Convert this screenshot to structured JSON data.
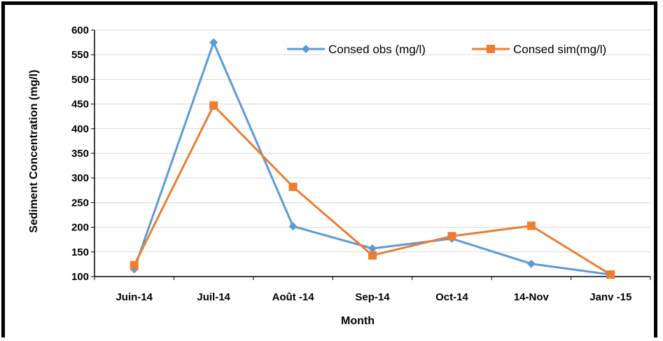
{
  "chart_data": {
    "type": "line",
    "title": "",
    "xlabel": "Month",
    "ylabel": "Sediment Concentration (mg/l)",
    "ylim": [
      100,
      600
    ],
    "yticks": [
      100,
      150,
      200,
      250,
      300,
      350,
      400,
      450,
      500,
      550,
      600
    ],
    "categories": [
      "Juin-14",
      "Juil-14",
      "Août -14",
      "Sep-14",
      "Oct-14",
      "14-Nov",
      "Janv -15"
    ],
    "grid": "horizontal",
    "legend": "top-right",
    "series": [
      {
        "name": "Consed obs (mg/l)",
        "color": "#5b9bd5",
        "marker": "diamond",
        "values": [
          115,
          575,
          202,
          157,
          177,
          126,
          104
        ]
      },
      {
        "name": "Consed sim(mg/l)",
        "color": "#ed7d31",
        "marker": "square",
        "values": [
          123,
          447,
          282,
          143,
          182,
          203,
          104
        ]
      }
    ]
  }
}
